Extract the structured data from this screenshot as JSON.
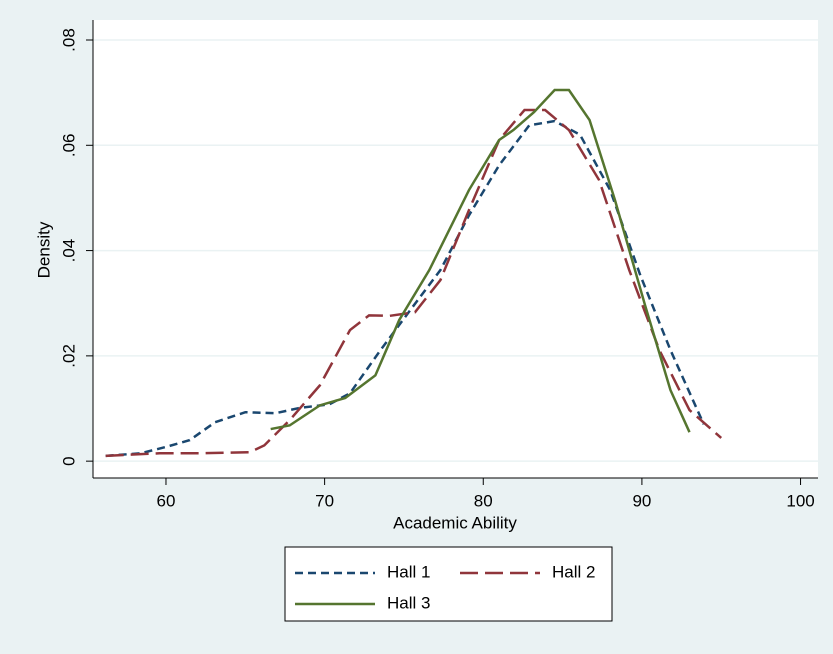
{
  "chart_data": {
    "type": "line",
    "x_label": "Academic Ability",
    "y_label": "Density",
    "xlim": [
      55.4,
      101.1
    ],
    "ylim": [
      -0.0032,
      0.0838
    ],
    "xticks": [
      60,
      70,
      80,
      90,
      100
    ],
    "yticks": [
      0,
      {
        "value": 0.02,
        "label": ".02"
      },
      {
        "value": 0.04,
        "label": ".04"
      },
      {
        "value": 0.06,
        "label": ".06"
      },
      {
        "value": 0.08,
        "label": ".08"
      }
    ],
    "grid": true,
    "legend": "bottom",
    "series": [
      {
        "name": "Hall 1",
        "color": "#1a476f",
        "dash": "short",
        "x": [
          56.2,
          58.4,
          60,
          61.5,
          63.1,
          65,
          66.9,
          68.4,
          70.3,
          71.6,
          73.5,
          75.4,
          77.3,
          79.1,
          81,
          82.9,
          84.5,
          86.1,
          88,
          89.9,
          91.8,
          93.9
        ],
        "values": [
          0.001,
          0.0015,
          0.0027,
          0.004,
          0.0074,
          0.0093,
          0.0091,
          0.0101,
          0.0108,
          0.0129,
          0.021,
          0.0287,
          0.0363,
          0.0467,
          0.0562,
          0.0638,
          0.0646,
          0.062,
          0.0515,
          0.0353,
          0.0211,
          0.007
        ]
      },
      {
        "name": "Hall 2",
        "color": "#90353b",
        "dash": "long",
        "x": [
          56.2,
          59.6,
          62.1,
          65.3,
          66.2,
          67.8,
          69.7,
          71.6,
          72.8,
          74.1,
          75.7,
          77.3,
          79.1,
          81,
          82.6,
          83.9,
          85.4,
          87.3,
          89.2,
          91.1,
          93,
          95
        ],
        "values": [
          0.001,
          0.0015,
          0.0015,
          0.0017,
          0.003,
          0.0078,
          0.0144,
          0.0249,
          0.0277,
          0.0276,
          0.0283,
          0.0344,
          0.0477,
          0.061,
          0.0667,
          0.0667,
          0.0629,
          0.0534,
          0.0363,
          0.0211,
          0.0097,
          0.0044
        ]
      },
      {
        "name": "Hall 3",
        "color": "#55752f",
        "dash": "solid",
        "x": [
          66.6,
          67.8,
          69.7,
          71.3,
          73.2,
          74.7,
          76.6,
          79.1,
          81,
          81.9,
          83.2,
          84.5,
          85.4,
          86.7,
          88.3,
          90.2,
          91.8,
          93
        ],
        "values": [
          0.0061,
          0.0068,
          0.0106,
          0.012,
          0.0163,
          0.0268,
          0.0363,
          0.0515,
          0.061,
          0.0629,
          0.0663,
          0.0705,
          0.0705,
          0.0648,
          0.0496,
          0.0296,
          0.0135,
          0.0055
        ]
      }
    ]
  }
}
